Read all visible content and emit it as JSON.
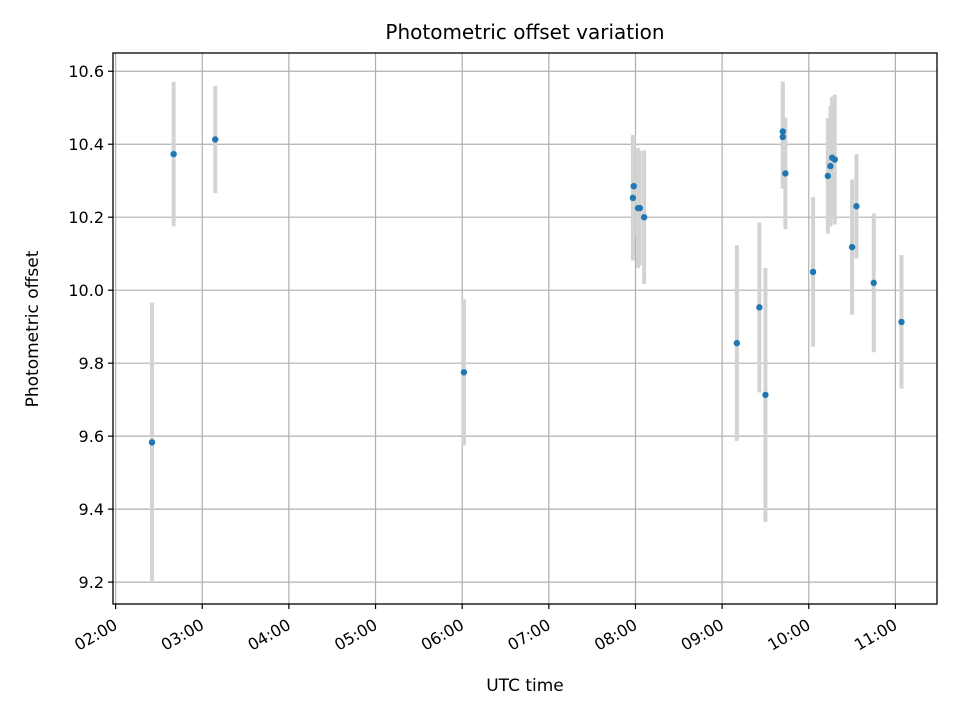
{
  "chart_data": {
    "type": "scatter",
    "title": "Photometric offset variation",
    "xlabel": "UTC time",
    "ylabel": "Photometric offset",
    "x_unit": "hour",
    "xlim": [
      1.97,
      11.48
    ],
    "ylim": [
      9.14,
      10.65
    ],
    "x_ticks": [
      2,
      3,
      4,
      5,
      6,
      7,
      8,
      9,
      10,
      11
    ],
    "x_tick_labels": [
      "02:00",
      "03:00",
      "04:00",
      "05:00",
      "06:00",
      "07:00",
      "08:00",
      "09:00",
      "10:00",
      "11:00"
    ],
    "y_ticks": [
      9.2,
      9.4,
      9.6,
      9.8,
      10.0,
      10.2,
      10.4,
      10.6
    ],
    "y_tick_labels": [
      "9.2",
      "9.4",
      "9.6",
      "9.8",
      "10.0",
      "10.2",
      "10.4",
      "10.6"
    ],
    "grid": true,
    "colors": {
      "point": "#1f77b4",
      "errorbar": "#d3d3d3",
      "grid": "#b0b0b0"
    },
    "points": [
      {
        "x": 2.42,
        "y": 9.583,
        "err": 0.383
      },
      {
        "x": 2.67,
        "y": 10.373,
        "err": 0.198
      },
      {
        "x": 3.15,
        "y": 10.413,
        "err": 0.147
      },
      {
        "x": 6.02,
        "y": 9.775,
        "err": 0.2
      },
      {
        "x": 7.97,
        "y": 10.253,
        "err": 0.172
      },
      {
        "x": 7.98,
        "y": 10.285,
        "err": 0.14
      },
      {
        "x": 8.03,
        "y": 10.225,
        "err": 0.165
      },
      {
        "x": 8.05,
        "y": 10.225,
        "err": 0.157
      },
      {
        "x": 8.1,
        "y": 10.2,
        "err": 0.183
      },
      {
        "x": 9.17,
        "y": 9.855,
        "err": 0.268
      },
      {
        "x": 9.43,
        "y": 9.953,
        "err": 0.233
      },
      {
        "x": 9.5,
        "y": 9.713,
        "err": 0.348
      },
      {
        "x": 9.7,
        "y": 10.435,
        "err": 0.137
      },
      {
        "x": 9.7,
        "y": 10.42,
        "err": 0.142
      },
      {
        "x": 9.73,
        "y": 10.32,
        "err": 0.153
      },
      {
        "x": 10.05,
        "y": 10.05,
        "err": 0.205
      },
      {
        "x": 10.22,
        "y": 10.313,
        "err": 0.158
      },
      {
        "x": 10.25,
        "y": 10.34,
        "err": 0.165
      },
      {
        "x": 10.27,
        "y": 10.363,
        "err": 0.167
      },
      {
        "x": 10.3,
        "y": 10.358,
        "err": 0.178
      },
      {
        "x": 10.5,
        "y": 10.118,
        "err": 0.185
      },
      {
        "x": 10.55,
        "y": 10.23,
        "err": 0.143
      },
      {
        "x": 10.75,
        "y": 10.02,
        "err": 0.19
      },
      {
        "x": 11.07,
        "y": 9.913,
        "err": 0.183
      }
    ]
  }
}
